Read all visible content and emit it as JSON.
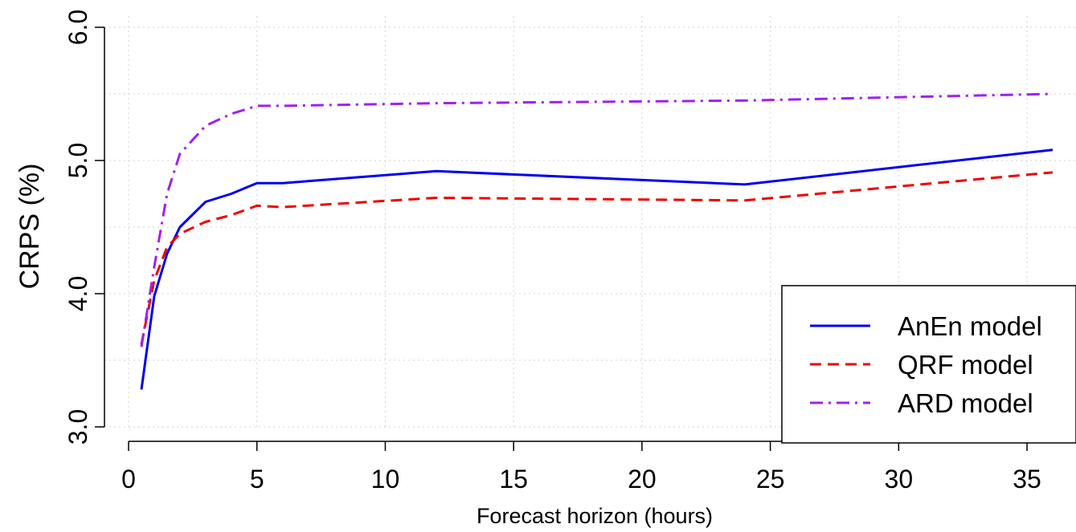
{
  "chart_data": {
    "type": "line",
    "title": "",
    "xlabel": "Forecast horizon (hours)",
    "ylabel": "CRPS (%)",
    "xlim": [
      0,
      36
    ],
    "ylim": [
      3.0,
      6.0
    ],
    "x_ticks": [
      0,
      5,
      10,
      15,
      20,
      25,
      30,
      35
    ],
    "x_tick_labels": [
      "0",
      "5",
      "10",
      "15",
      "20",
      "25",
      "30",
      "35"
    ],
    "y_ticks": [
      3.0,
      4.0,
      5.0,
      6.0
    ],
    "y_tick_labels": [
      "3.0",
      "4.0",
      "5.0",
      "6.0"
    ],
    "grid": true,
    "legend_position": "bottom-right",
    "series": [
      {
        "name": "AnEn model",
        "color": "#0000ee",
        "line_style": "solid",
        "x": [
          0.5,
          1,
          1.5,
          2,
          3,
          4,
          5,
          6,
          12,
          24,
          36
        ],
        "y": [
          3.28,
          3.98,
          4.3,
          4.5,
          4.69,
          4.75,
          4.83,
          4.83,
          4.92,
          4.82,
          5.08
        ]
      },
      {
        "name": "QRF model",
        "color": "#ee0000",
        "line_style": "dashed",
        "x": [
          0.5,
          1,
          1.5,
          2,
          3,
          4,
          5,
          6,
          12,
          24,
          36
        ],
        "y": [
          3.62,
          4.1,
          4.35,
          4.45,
          4.54,
          4.59,
          4.66,
          4.65,
          4.72,
          4.7,
          4.91
        ]
      },
      {
        "name": "ARD model",
        "color": "#a020f0",
        "line_style": "dashdot",
        "x": [
          0.5,
          1,
          1.5,
          2,
          3,
          4,
          5,
          6,
          12,
          24,
          36
        ],
        "y": [
          3.6,
          4.2,
          4.75,
          5.05,
          5.26,
          5.35,
          5.41,
          5.41,
          5.43,
          5.45,
          5.5
        ]
      }
    ]
  }
}
